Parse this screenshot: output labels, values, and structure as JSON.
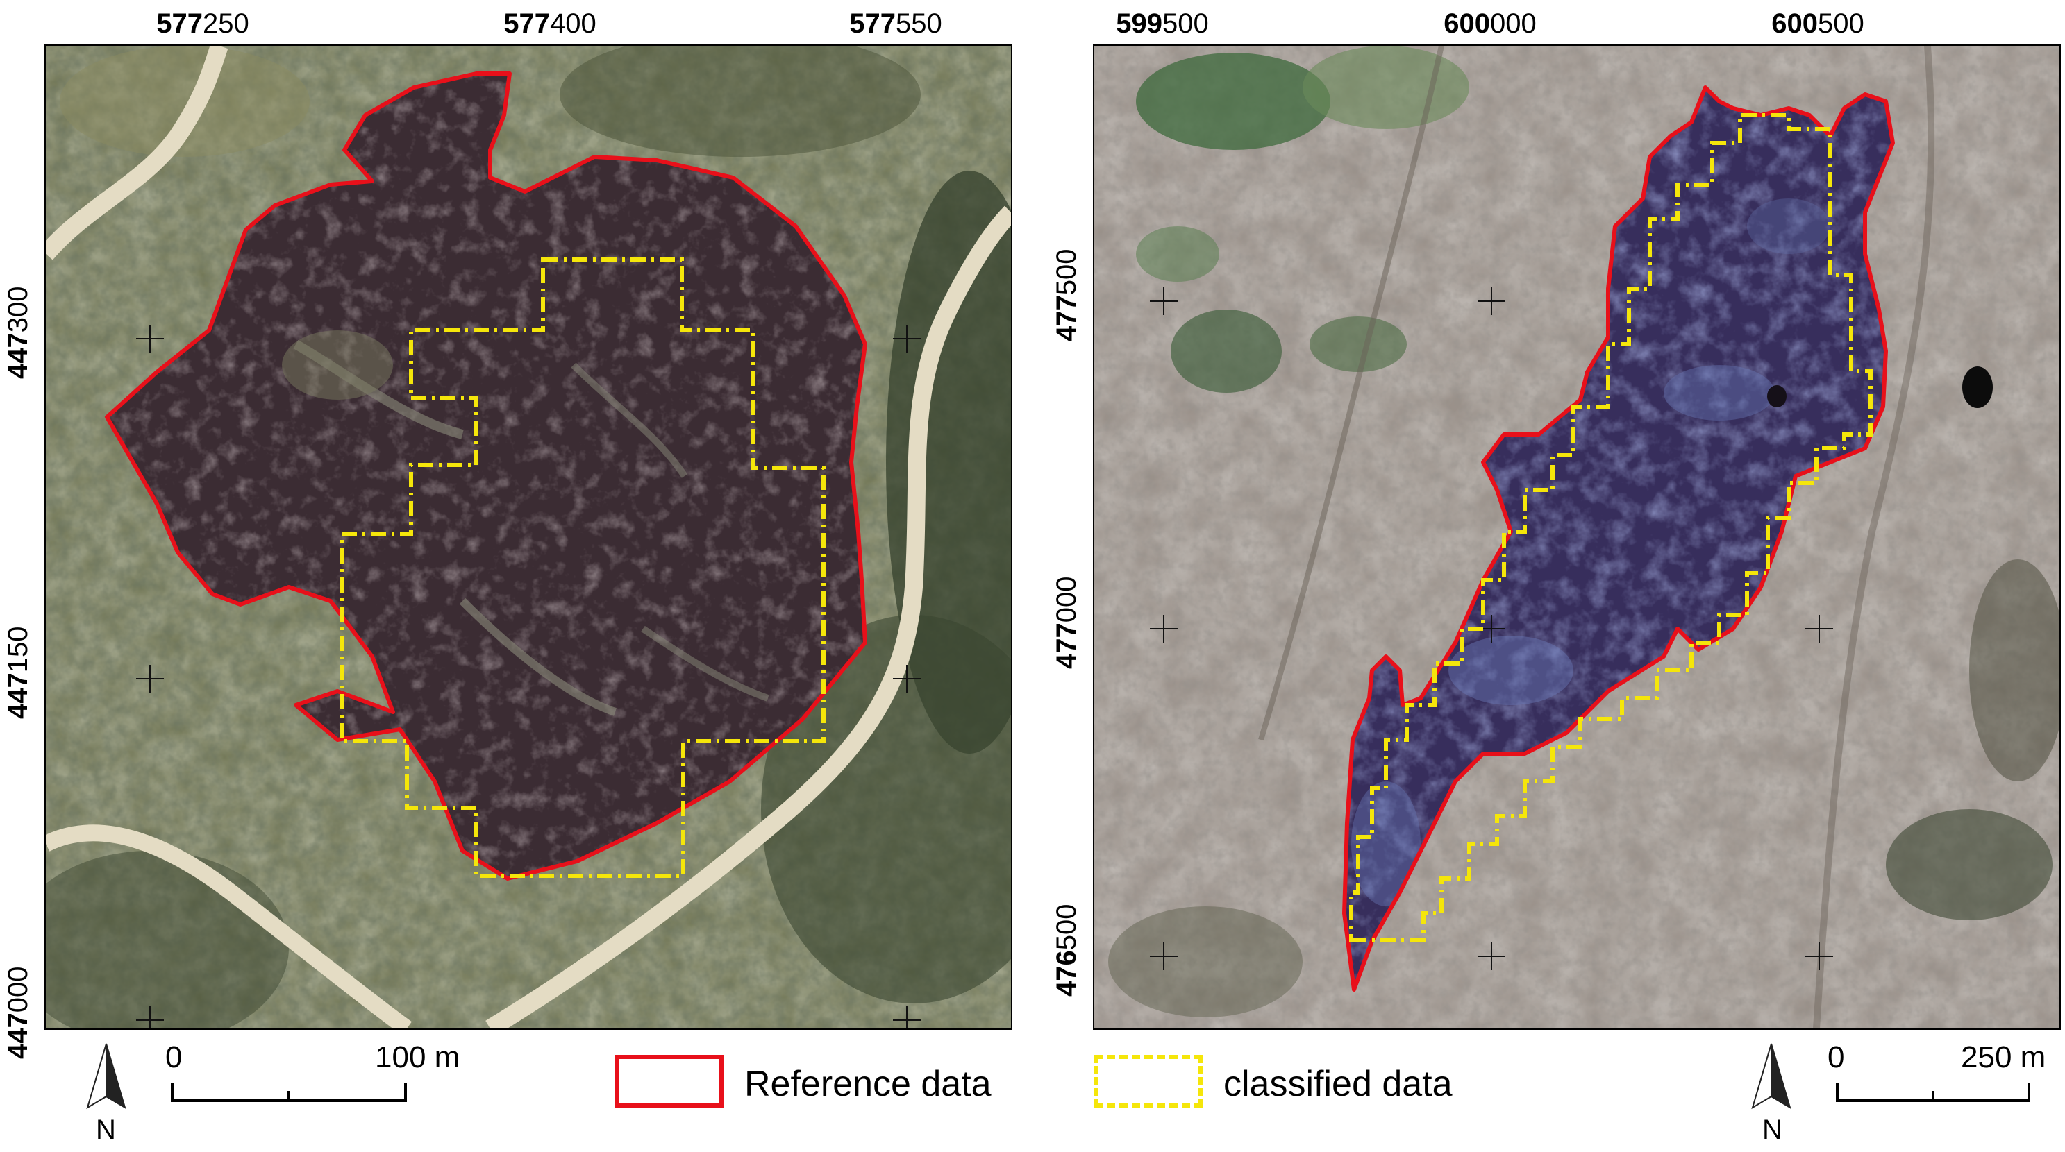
{
  "left_map": {
    "x_ticks": [
      {
        "bold": "577",
        "rest": "250"
      },
      {
        "bold": "577",
        "rest": "400"
      },
      {
        "bold": "577",
        "rest": "550"
      }
    ],
    "y_ticks": [
      {
        "bold": "447",
        "rest": "300"
      },
      {
        "bold": "447",
        "rest": "150"
      },
      {
        "bold": "447",
        "rest": "000"
      }
    ],
    "scale": {
      "start": "0",
      "end": "100 m"
    },
    "north": "N"
  },
  "right_map": {
    "x_ticks": [
      {
        "bold": "599",
        "rest": "500"
      },
      {
        "bold": "600",
        "rest": "000"
      },
      {
        "bold": "600",
        "rest": "500"
      }
    ],
    "y_ticks": [
      {
        "bold": "477",
        "rest": "500"
      },
      {
        "bold": "477",
        "rest": "000"
      },
      {
        "bold": "476",
        "rest": "500"
      }
    ],
    "scale": {
      "start": "0",
      "end": "250 m"
    },
    "north": "N"
  },
  "legend": {
    "reference": {
      "label": "Reference data",
      "color": "#e8101a",
      "style": "solid"
    },
    "classified": {
      "label": "classified data",
      "color": "#f5e60a",
      "style": "dash-dot"
    }
  },
  "colors": {
    "burn_left": "#3a2a30",
    "burn_right": "#3a3060",
    "terrain_left": "#6b7050",
    "terrain_right": "#9a9088",
    "road": "#e8e0c8"
  }
}
